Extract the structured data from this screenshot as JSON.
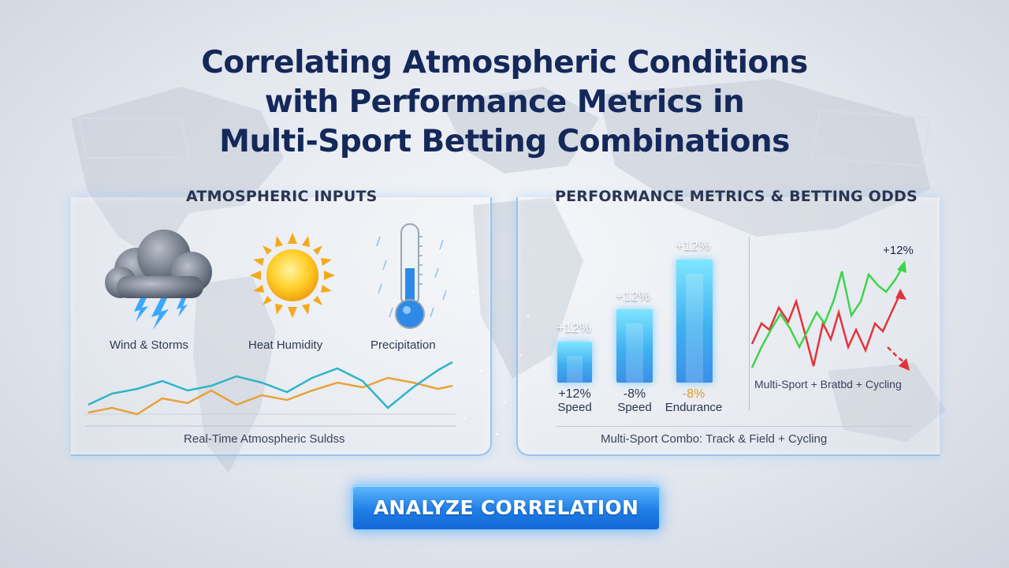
{
  "title_lines": [
    "Correlating Atmospheric Conditions",
    "with Performance Metrics in",
    "Multi-Sport Betting Combinations"
  ],
  "left_panel": {
    "heading": "ATMOSPHERIC INPUTS",
    "icons": [
      {
        "icon": "storm-cloud-icon",
        "label": "Wind & Storms"
      },
      {
        "icon": "sun-icon",
        "label": "Heat Humidity"
      },
      {
        "icon": "thermometer-icon",
        "label": "Precipitation"
      }
    ],
    "caption": "Real-Time Atmospheric Suldss"
  },
  "right_panel": {
    "heading": "PERFORMANCE METRICS & BETTING ODDS",
    "bars": [
      {
        "top_label": "+12%",
        "value": "+12%",
        "metric": "Speed",
        "level": 0.4
      },
      {
        "top_label": "+12%",
        "value": "-8%",
        "metric": "Speed",
        "level": 0.67
      },
      {
        "top_label": "+12%",
        "value": "-8%",
        "metric": "Endurance",
        "level": 1.0
      }
    ],
    "line_chart_label": "+12%",
    "line_chart_caption": "Multi-Sport + Bratbd + Cycling",
    "caption": "Multi-Sport Combo: Track & Field + Cycling"
  },
  "cta_label": "ANALYZE CORRELATION",
  "colors": {
    "title": "#14285a",
    "teal_line": "#2fb4c8",
    "orange_line": "#e8a23a",
    "green_line": "#3ed44a",
    "red_line": "#e0343a",
    "bar_blue": "#3fb0f0",
    "button_blue": "#1f7fe6"
  }
}
